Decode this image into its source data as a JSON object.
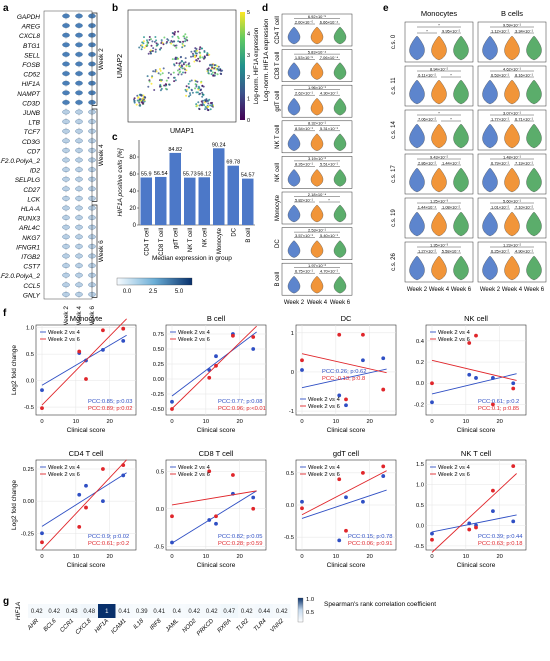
{
  "panel_labels": {
    "a": "a",
    "b": "b",
    "c": "c",
    "d": "d",
    "e": "e",
    "f": "f",
    "g": "g"
  },
  "panel_a": {
    "genes": [
      "GAPDH",
      "AREG",
      "CXCL8",
      "BTG1",
      "SELL",
      "FOSB",
      "CD52",
      "HIF1A",
      "NAMPT",
      "CD3D",
      "JUNB",
      "LTB",
      "TCF7",
      "CD3G",
      "CD7",
      "KLF2.0.PolyA_2",
      "ID2",
      "SELPLG",
      "CD27",
      "LCK",
      "HLA-A",
      "RUNX3",
      "ARL4C",
      "NKG7",
      "IFNGR1",
      "ITGB2",
      "CST7",
      "KLF2.0.PolyA_2",
      "CCL5",
      "GNLY"
    ],
    "groups": [
      {
        "label": "Week 2",
        "start": 0,
        "end": 9
      },
      {
        "label": "Week 4",
        "start": 10,
        "end": 19
      },
      {
        "label": "Week 6",
        "start": 20,
        "end": 29
      }
    ],
    "columns": [
      "Week 2",
      "Week 4",
      "Week 6"
    ]
  },
  "panel_b": {
    "xlabel": "UMAP1",
    "ylabel": "UMAP2",
    "colorbar_label": "Log-norm. HIF1A expression",
    "ticks": [
      "0",
      "1",
      "2",
      "3",
      "4",
      "5"
    ]
  },
  "chart_data": [
    {
      "type": "bar",
      "ylabel": "HIF1A positive cells [%]",
      "categories": [
        "CD4 T cell",
        "CD8 T cell",
        "gdT cell",
        "NK T cell",
        "NK cell",
        "Monocyte",
        "DC",
        "B cell"
      ],
      "values": [
        55.9,
        56.54,
        84.82,
        55.73,
        56.12,
        90.24,
        69.78,
        54.57
      ],
      "value_labels": [
        "55.9",
        "56.54",
        "84.82",
        "55.73",
        "56.12",
        "90.24",
        "69.78",
        "54.57"
      ],
      "ylim": [
        0,
        100
      ],
      "yticks": [
        0,
        20,
        40,
        60,
        80
      ]
    }
  ],
  "legend_a": {
    "title": "Median expression in group",
    "ticks": [
      "0.0",
      "2.5",
      "5.0"
    ]
  },
  "panel_d": {
    "cells": [
      "CD4 T cell",
      "CD8 T cell",
      "gdT cell",
      "NK T cell",
      "NK cell",
      "Monocyte",
      "DC",
      "B cell"
    ],
    "ylabel": "Log-norm. HIF1A expression",
    "xticks": [
      "Week 2",
      "Week 4",
      "Week 6"
    ],
    "pvals": [
      [
        "6.92×10⁻⁵",
        "2.00×10⁻⁵",
        "6.66×10⁻⁴"
      ],
      [
        "5.83×10⁻⁴",
        "1.53×10⁻⁵",
        "7.06×10⁻⁴"
      ],
      [
        "1.96×10⁻¹",
        "2.62×10⁻¹",
        "4.30×10⁻¹"
      ],
      [
        "8.32×10⁻¹",
        "8.54×10⁻¹",
        "5.31×10⁻¹"
      ],
      [
        "3.19×10⁻²",
        "8.26×10⁻¹",
        "5.51×10⁻¹"
      ],
      [
        "2.18×10⁻⁴",
        "5.82×10⁻¹",
        "*"
      ],
      [
        "2.53×10⁻¹",
        "3.57×10⁻¹",
        "5.40×10⁻¹"
      ],
      [
        "1.97×10⁻²",
        "6.75×10⁻¹",
        "4.70×10⁻¹"
      ]
    ]
  },
  "panel_e": {
    "columns": [
      "Monocytes",
      "B cells"
    ],
    "rows": [
      "c.s. 0",
      "c.s. 11",
      "c.s. 14",
      "c.s. 17",
      "c.s. 19",
      "c.s. 26"
    ],
    "xticks": [
      "Week 2",
      "Week 4",
      "Week 6"
    ],
    "pvals_left": [
      [
        "*",
        "*",
        "9.95×10⁻²"
      ],
      [
        "8.94×10⁻²",
        "6.11×10⁻²",
        "*"
      ],
      [
        "*",
        "7.06×10⁻²",
        "*"
      ],
      [
        "9.43×10⁻²",
        "2.86×10⁻²",
        "1.44×10⁻²"
      ],
      [
        "1.25×10⁻³",
        "1.44×10⁻⁴",
        "1.08×10⁻²"
      ],
      [
        "1.35×10⁻³",
        "1.27×10⁻²",
        "5.58×10⁻⁴"
      ]
    ],
    "pvals_right": [
      [
        "9.59×10⁻¹",
        "1.12×10⁻¹",
        "3.34×10⁻¹"
      ],
      [
        "4.62×10⁻¹",
        "6.53×10⁻¹",
        "8.16×10⁻¹"
      ],
      [
        "3.07×10⁻¹",
        "1.77×10⁻¹",
        "6.71×10⁻¹"
      ],
      [
        "1.48×10⁻¹",
        "6.79×10⁻¹",
        "7.19×10⁻¹"
      ],
      [
        "5.60×10⁻¹",
        "1.01×10⁻²",
        "7.10×10⁻²"
      ],
      [
        "1.23×10⁻²",
        "6.25×10⁻²",
        "4.90×10⁻¹"
      ]
    ]
  },
  "panel_f": {
    "ylabel": "Log2 fold change",
    "xlabel": "Clinical score",
    "legend": [
      "Week 2 vs 4",
      "Week 2 vs 6"
    ],
    "colors": {
      "blue": "#2f4fc4",
      "red": "#e0262b"
    },
    "plots": [
      {
        "title": "Monocyte",
        "pcc_blue": "PCC:0.85; p:0.03",
        "pcc_red": "PCC:0.89; p:0.02",
        "ylim": [
          -0.65,
          1.05
        ],
        "yticks": [
          "-0.5",
          "0.0",
          "0.5",
          "1.0"
        ],
        "blue": [
          [
            0,
            -0.18
          ],
          [
            11,
            0.52
          ],
          [
            13,
            0.38
          ],
          [
            18,
            0.58
          ],
          [
            24,
            0.75
          ]
        ],
        "red": [
          [
            0,
            -0.52
          ],
          [
            11,
            0.55
          ],
          [
            13,
            0.03
          ],
          [
            18,
            0.95
          ],
          [
            24,
            0.98
          ]
        ]
      },
      {
        "title": "B cell",
        "pcc_blue": "PCC:0.77; p:0.08",
        "pcc_red": "PCC:0.96; p:<0.01",
        "ylim": [
          -0.6,
          0.9
        ],
        "yticks": [
          "-0.50",
          "-0.25",
          "0.00",
          "0.25",
          "0.50",
          "0.75"
        ],
        "blue": [
          [
            0,
            -0.38
          ],
          [
            11,
            0.15
          ],
          [
            13,
            0.38
          ],
          [
            18,
            0.75
          ],
          [
            24,
            0.5
          ]
        ],
        "red": [
          [
            0,
            -0.5
          ],
          [
            11,
            0.02
          ],
          [
            13,
            0.22
          ],
          [
            18,
            0.72
          ],
          [
            24,
            0.7
          ]
        ]
      },
      {
        "title": "DC",
        "pcc_blue": "PCC:0.26; p:0.62",
        "pcc_red": "PCC:-0.13; p:0.8",
        "ylim": [
          -1.1,
          1.2
        ],
        "yticks": [
          "-1",
          "0",
          "1"
        ],
        "blue": [
          [
            0,
            0.05
          ],
          [
            11,
            -0.6
          ],
          [
            13,
            -0.85
          ],
          [
            18,
            0.3
          ],
          [
            24,
            0.35
          ]
        ],
        "red": [
          [
            0,
            0.3
          ],
          [
            11,
            0.95
          ],
          [
            13,
            -0.7
          ],
          [
            18,
            0.95
          ],
          [
            24,
            -0.45
          ]
        ]
      },
      {
        "title": "NK cell",
        "pcc_blue": "PCC:0.61; p:0.2",
        "pcc_red": "PCC:0.1; p:0.85",
        "ylim": [
          -0.3,
          0.55
        ],
        "yticks": [
          "-0.2",
          "0.0",
          "0.2",
          "0.4"
        ],
        "blue": [
          [
            0,
            -0.18
          ],
          [
            11,
            0.08
          ],
          [
            13,
            0.05
          ],
          [
            18,
            0.05
          ],
          [
            24,
            0.0
          ]
        ],
        "red": [
          [
            0,
            0.0
          ],
          [
            11,
            0.38
          ],
          [
            13,
            0.45
          ],
          [
            18,
            -0.2
          ],
          [
            24,
            -0.05
          ]
        ]
      },
      {
        "title": "CD4 T cell",
        "pcc_blue": "PCC:0.9; p:0.02",
        "pcc_red": "PCC:0.61; p:0.2",
        "ylim": [
          -0.38,
          0.32
        ],
        "yticks": [
          "-0.25",
          "0.00",
          "0.25"
        ],
        "blue": [
          [
            0,
            -0.25
          ],
          [
            11,
            0.05
          ],
          [
            13,
            0.12
          ],
          [
            18,
            0.0
          ],
          [
            24,
            0.2
          ]
        ],
        "red": [
          [
            0,
            -0.32
          ],
          [
            11,
            -0.2
          ],
          [
            13,
            -0.05
          ],
          [
            18,
            0.25
          ],
          [
            24,
            0.28
          ]
        ]
      },
      {
        "title": "CD8 T cell",
        "pcc_blue": "PCC:0.82; p:0.05",
        "pcc_red": "PCC:0.28; p:0.59",
        "ylim": [
          -0.55,
          0.65
        ],
        "yticks": [
          "-0.5",
          "0.0",
          "0.5"
        ],
        "blue": [
          [
            0,
            -0.45
          ],
          [
            11,
            -0.15
          ],
          [
            13,
            -0.2
          ],
          [
            18,
            0.2
          ],
          [
            24,
            0.15
          ]
        ],
        "red": [
          [
            0,
            -0.1
          ],
          [
            11,
            0.5
          ],
          [
            13,
            -0.1
          ],
          [
            18,
            0.45
          ],
          [
            24,
            0.0
          ]
        ]
      },
      {
        "title": "gdT cell",
        "pcc_blue": "PCC:0.15; p:0.78",
        "pcc_red": "PCC:0.06; p:0.91",
        "ylim": [
          -0.7,
          0.7
        ],
        "yticks": [
          "-0.5",
          "0.0",
          "0.5"
        ],
        "blue": [
          [
            0,
            0.05
          ],
          [
            11,
            -0.55
          ],
          [
            13,
            0.12
          ],
          [
            18,
            0.05
          ],
          [
            24,
            0.45
          ]
        ],
        "red": [
          [
            0,
            -0.05
          ],
          [
            11,
            0.4
          ],
          [
            13,
            -0.4
          ],
          [
            18,
            0.5
          ],
          [
            24,
            0.6
          ]
        ]
      },
      {
        "title": "NK T cell",
        "pcc_blue": "PCC:0.39; p:0.44",
        "pcc_red": "PCC:0.63; p:0.18",
        "ylim": [
          -0.6,
          1.6
        ],
        "yticks": [
          "-0.5",
          "0.0",
          "0.5",
          "1.0",
          "1.5"
        ],
        "blue": [
          [
            0,
            -0.2
          ],
          [
            11,
            0.05
          ],
          [
            13,
            0.0
          ],
          [
            18,
            0.35
          ],
          [
            24,
            0.1
          ]
        ],
        "red": [
          [
            0,
            -0.35
          ],
          [
            11,
            -0.1
          ],
          [
            13,
            -0.05
          ],
          [
            18,
            0.85
          ],
          [
            24,
            1.45
          ]
        ]
      }
    ],
    "xticks": [
      "0",
      "10",
      "20"
    ]
  },
  "panel_g": {
    "row_label": "HIF1A",
    "genes": [
      "AHR",
      "BCL6",
      "CCR1",
      "CXCL8",
      "HIF1A",
      "ICAM1",
      "IL18",
      "IRF8",
      "JAML",
      "NOD2",
      "PRKCD",
      "RXRA",
      "TLR2",
      "TLR4",
      "VNN2"
    ],
    "values": [
      0.42,
      0.42,
      0.43,
      0.48,
      1,
      0.41,
      0.39,
      0.41,
      0.4,
      0.42,
      0.42,
      0.47,
      0.42,
      0.44,
      0.42
    ],
    "value_labels": [
      "0.42",
      "0.42",
      "0.43",
      "0.48",
      "1",
      "0.41",
      "0.39",
      "0.41",
      "0.4",
      "0.42",
      "0.42",
      "0.47",
      "0.42",
      "0.44",
      "0.42"
    ],
    "colorbar_label": "Spearman's rank correlation coefficient",
    "colorbar_ticks": [
      "1.0",
      "0.5"
    ]
  }
}
